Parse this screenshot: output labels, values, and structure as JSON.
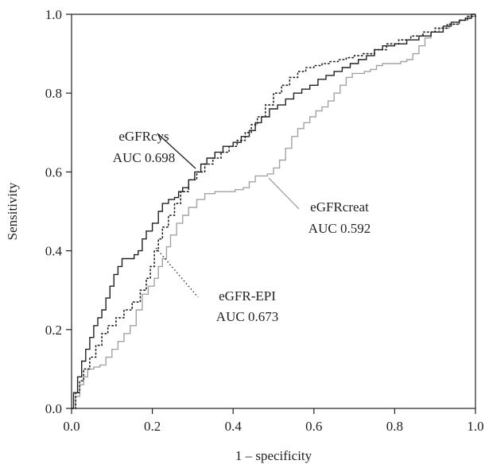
{
  "chart_data": {
    "type": "line",
    "xlabel": "1 – specificity",
    "ylabel": "Sensitivity",
    "xlim": [
      0,
      1
    ],
    "ylim": [
      0,
      1
    ],
    "x_ticks": [
      "0.0",
      "0.2",
      "0.4",
      "0.6",
      "0.8",
      "1.0"
    ],
    "y_ticks": [
      "0.0",
      "0.2",
      "0.4",
      "0.6",
      "0.8",
      "1.0"
    ],
    "grid": false,
    "series": [
      {
        "name": "eGFRcys",
        "color": "#231f20",
        "style": "solid",
        "points": [
          [
            0,
            0
          ],
          [
            0.005,
            0.04
          ],
          [
            0.015,
            0.08
          ],
          [
            0.025,
            0.12
          ],
          [
            0.035,
            0.15
          ],
          [
            0.045,
            0.18
          ],
          [
            0.055,
            0.21
          ],
          [
            0.065,
            0.23
          ],
          [
            0.075,
            0.25
          ],
          [
            0.085,
            0.28
          ],
          [
            0.095,
            0.31
          ],
          [
            0.105,
            0.34
          ],
          [
            0.115,
            0.36
          ],
          [
            0.125,
            0.38
          ],
          [
            0.14,
            0.38
          ],
          [
            0.155,
            0.39
          ],
          [
            0.165,
            0.4
          ],
          [
            0.175,
            0.43
          ],
          [
            0.185,
            0.45
          ],
          [
            0.2,
            0.47
          ],
          [
            0.215,
            0.5
          ],
          [
            0.225,
            0.52
          ],
          [
            0.24,
            0.53
          ],
          [
            0.255,
            0.535
          ],
          [
            0.265,
            0.55
          ],
          [
            0.275,
            0.56
          ],
          [
            0.29,
            0.58
          ],
          [
            0.305,
            0.6
          ],
          [
            0.32,
            0.62
          ],
          [
            0.335,
            0.635
          ],
          [
            0.355,
            0.65
          ],
          [
            0.375,
            0.665
          ],
          [
            0.4,
            0.675
          ],
          [
            0.42,
            0.69
          ],
          [
            0.44,
            0.705
          ],
          [
            0.455,
            0.725
          ],
          [
            0.47,
            0.74
          ],
          [
            0.49,
            0.76
          ],
          [
            0.51,
            0.77
          ],
          [
            0.53,
            0.785
          ],
          [
            0.55,
            0.8
          ],
          [
            0.57,
            0.81
          ],
          [
            0.59,
            0.82
          ],
          [
            0.61,
            0.835
          ],
          [
            0.63,
            0.845
          ],
          [
            0.65,
            0.855
          ],
          [
            0.67,
            0.865
          ],
          [
            0.69,
            0.875
          ],
          [
            0.71,
            0.885
          ],
          [
            0.73,
            0.895
          ],
          [
            0.75,
            0.91
          ],
          [
            0.77,
            0.92
          ],
          [
            0.8,
            0.925
          ],
          [
            0.83,
            0.935
          ],
          [
            0.86,
            0.945
          ],
          [
            0.89,
            0.955
          ],
          [
            0.92,
            0.97
          ],
          [
            0.94,
            0.98
          ],
          [
            0.96,
            0.985
          ],
          [
            0.975,
            0.99
          ],
          [
            0.99,
            1.0
          ],
          [
            1,
            1
          ]
        ]
      },
      {
        "name": "eGFR-EPI",
        "color": "#231f20",
        "style": "dotted",
        "points": [
          [
            0,
            0
          ],
          [
            0.01,
            0.04
          ],
          [
            0.02,
            0.07
          ],
          [
            0.03,
            0.1
          ],
          [
            0.045,
            0.13
          ],
          [
            0.06,
            0.16
          ],
          [
            0.075,
            0.19
          ],
          [
            0.09,
            0.21
          ],
          [
            0.11,
            0.23
          ],
          [
            0.13,
            0.25
          ],
          [
            0.15,
            0.27
          ],
          [
            0.17,
            0.3
          ],
          [
            0.185,
            0.33
          ],
          [
            0.195,
            0.36
          ],
          [
            0.205,
            0.4
          ],
          [
            0.215,
            0.43
          ],
          [
            0.225,
            0.46
          ],
          [
            0.24,
            0.49
          ],
          [
            0.255,
            0.52
          ],
          [
            0.27,
            0.55
          ],
          [
            0.29,
            0.58
          ],
          [
            0.31,
            0.6
          ],
          [
            0.33,
            0.62
          ],
          [
            0.35,
            0.635
          ],
          [
            0.37,
            0.65
          ],
          [
            0.39,
            0.665
          ],
          [
            0.41,
            0.68
          ],
          [
            0.43,
            0.7
          ],
          [
            0.445,
            0.72
          ],
          [
            0.46,
            0.74
          ],
          [
            0.48,
            0.77
          ],
          [
            0.5,
            0.8
          ],
          [
            0.52,
            0.82
          ],
          [
            0.54,
            0.84
          ],
          [
            0.56,
            0.855
          ],
          [
            0.58,
            0.865
          ],
          [
            0.6,
            0.87
          ],
          [
            0.62,
            0.875
          ],
          [
            0.64,
            0.88
          ],
          [
            0.66,
            0.885
          ],
          [
            0.68,
            0.89
          ],
          [
            0.7,
            0.895
          ],
          [
            0.72,
            0.9
          ],
          [
            0.75,
            0.91
          ],
          [
            0.78,
            0.925
          ],
          [
            0.81,
            0.935
          ],
          [
            0.84,
            0.945
          ],
          [
            0.87,
            0.955
          ],
          [
            0.9,
            0.965
          ],
          [
            0.93,
            0.975
          ],
          [
            0.96,
            0.985
          ],
          [
            0.98,
            0.995
          ],
          [
            1,
            1
          ]
        ]
      },
      {
        "name": "eGFRcreat",
        "color": "#a3a3a3",
        "style": "solid",
        "points": [
          [
            0,
            0
          ],
          [
            0.01,
            0.03
          ],
          [
            0.02,
            0.06
          ],
          [
            0.03,
            0.08
          ],
          [
            0.04,
            0.1
          ],
          [
            0.055,
            0.105
          ],
          [
            0.07,
            0.11
          ],
          [
            0.085,
            0.13
          ],
          [
            0.1,
            0.15
          ],
          [
            0.115,
            0.17
          ],
          [
            0.13,
            0.19
          ],
          [
            0.145,
            0.21
          ],
          [
            0.16,
            0.25
          ],
          [
            0.175,
            0.29
          ],
          [
            0.19,
            0.31
          ],
          [
            0.205,
            0.33
          ],
          [
            0.215,
            0.36
          ],
          [
            0.225,
            0.38
          ],
          [
            0.235,
            0.41
          ],
          [
            0.245,
            0.44
          ],
          [
            0.26,
            0.47
          ],
          [
            0.275,
            0.49
          ],
          [
            0.29,
            0.51
          ],
          [
            0.31,
            0.53
          ],
          [
            0.33,
            0.545
          ],
          [
            0.355,
            0.55
          ],
          [
            0.38,
            0.55
          ],
          [
            0.405,
            0.555
          ],
          [
            0.425,
            0.56
          ],
          [
            0.44,
            0.575
          ],
          [
            0.455,
            0.59
          ],
          [
            0.47,
            0.59
          ],
          [
            0.485,
            0.595
          ],
          [
            0.5,
            0.61
          ],
          [
            0.515,
            0.63
          ],
          [
            0.53,
            0.66
          ],
          [
            0.545,
            0.69
          ],
          [
            0.56,
            0.71
          ],
          [
            0.575,
            0.725
          ],
          [
            0.59,
            0.74
          ],
          [
            0.605,
            0.755
          ],
          [
            0.62,
            0.765
          ],
          [
            0.635,
            0.78
          ],
          [
            0.65,
            0.8
          ],
          [
            0.665,
            0.82
          ],
          [
            0.68,
            0.84
          ],
          [
            0.695,
            0.85
          ],
          [
            0.71,
            0.85
          ],
          [
            0.725,
            0.855
          ],
          [
            0.74,
            0.86
          ],
          [
            0.755,
            0.87
          ],
          [
            0.77,
            0.875
          ],
          [
            0.785,
            0.875
          ],
          [
            0.8,
            0.875
          ],
          [
            0.815,
            0.88
          ],
          [
            0.83,
            0.885
          ],
          [
            0.845,
            0.9
          ],
          [
            0.86,
            0.92
          ],
          [
            0.875,
            0.94
          ],
          [
            0.89,
            0.955
          ],
          [
            0.91,
            0.965
          ],
          [
            0.935,
            0.975
          ],
          [
            0.96,
            0.985
          ],
          [
            0.98,
            0.995
          ],
          [
            1,
            1
          ]
        ]
      }
    ],
    "annotations": [
      {
        "name": "eGFRcys",
        "auc": "AUC 0.698",
        "leader_style": "solid",
        "color": "#231f20"
      },
      {
        "name": "eGFRcreat",
        "auc": "AUC 0.592",
        "leader_style": "solid",
        "color": "#a3a3a3"
      },
      {
        "name": "eGFR-EPI",
        "auc": "AUC 0.673",
        "leader_style": "dotted",
        "color": "#231f20"
      }
    ]
  }
}
